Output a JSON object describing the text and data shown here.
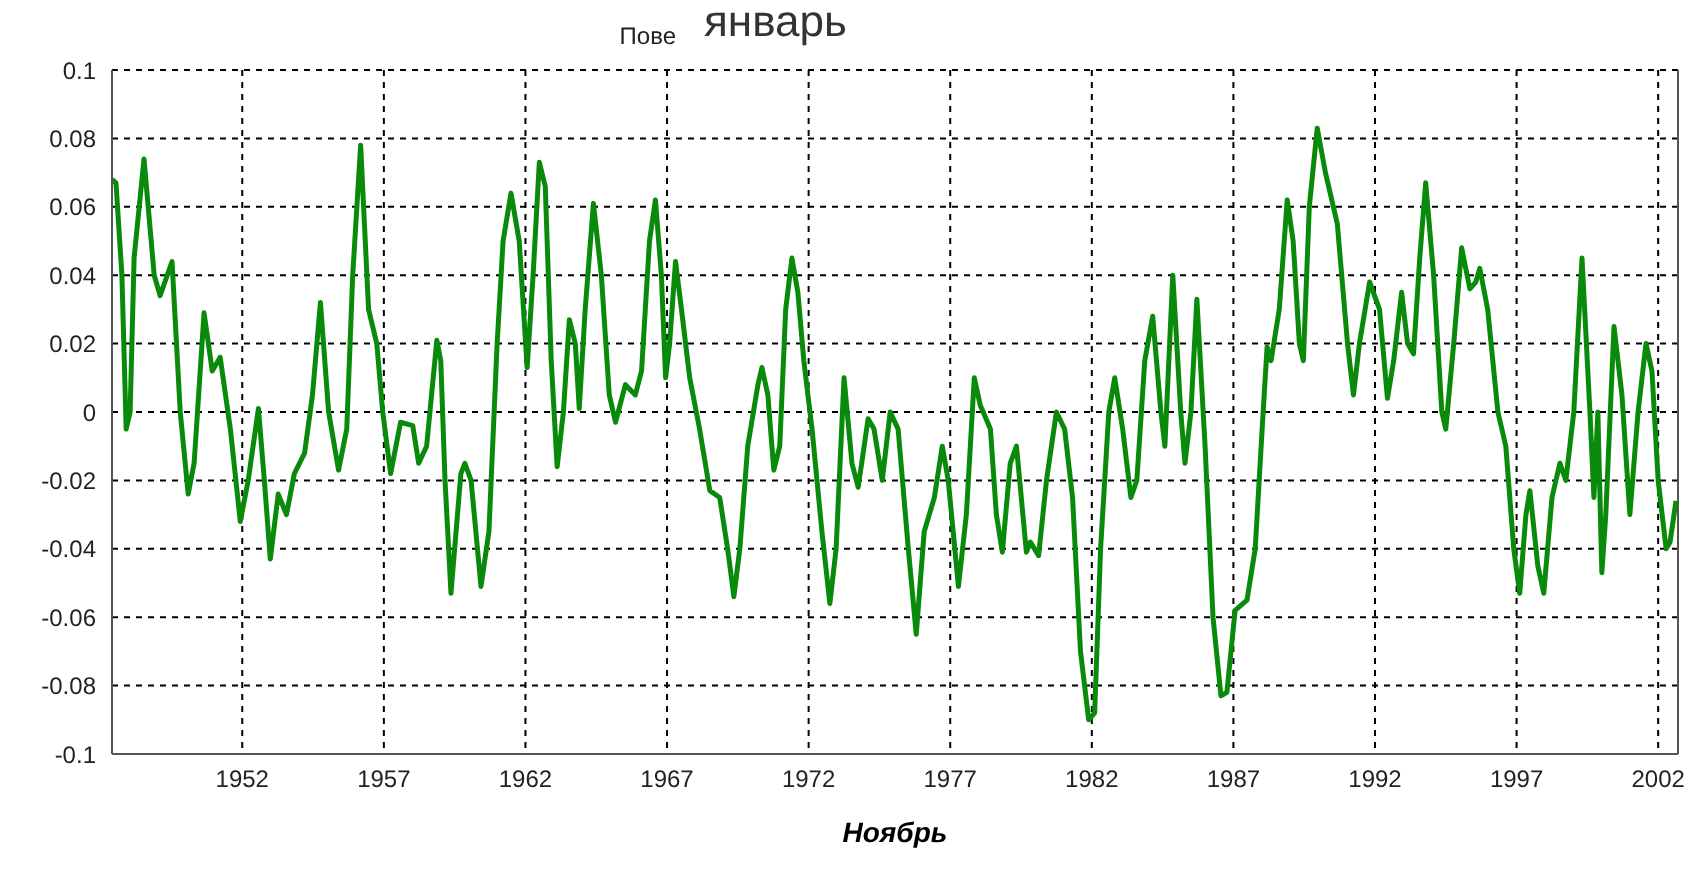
{
  "chart_data": {
    "type": "line",
    "title": "Пове",
    "subtitle": "январь",
    "xlabel": "Ноябрь",
    "xlim": [
      1947.4,
      2002.7
    ],
    "xticks": [
      1952,
      1957,
      1962,
      1967,
      1972,
      1977,
      1982,
      1987,
      1992,
      1997,
      2002
    ],
    "ylim": [
      -0.1,
      0.1
    ],
    "yticks": [
      -0.1,
      -0.08,
      -0.06,
      -0.04,
      -0.02,
      0,
      0.02,
      0.04,
      0.06,
      0.08,
      0.1
    ],
    "grid": true,
    "marker": "none",
    "line_style": "solid",
    "x": [
      1947.4,
      1947.54,
      1947.75,
      1947.9,
      1948.04,
      1948.18,
      1948.53,
      1948.89,
      1949.1,
      1949.52,
      1949.81,
      1950.09,
      1950.3,
      1950.65,
      1950.94,
      1951.22,
      1951.58,
      1951.93,
      1952.21,
      1952.57,
      1952.78,
      1952.99,
      1953.27,
      1953.56,
      1953.84,
      1954.2,
      1954.48,
      1954.76,
      1955.05,
      1955.4,
      1955.69,
      1955.9,
      1956.18,
      1956.46,
      1956.75,
      1956.96,
      1957.24,
      1957.59,
      1958.02,
      1958.23,
      1958.51,
      1958.87,
      1959.01,
      1959.16,
      1959.37,
      1959.72,
      1959.86,
      1960.08,
      1960.43,
      1960.71,
      1961.0,
      1961.21,
      1961.49,
      1961.78,
      1962.06,
      1962.27,
      1962.49,
      1962.7,
      1962.91,
      1963.12,
      1963.34,
      1963.55,
      1963.76,
      1963.9,
      1964.11,
      1964.4,
      1964.68,
      1964.96,
      1965.18,
      1965.53,
      1965.88,
      1966.1,
      1966.38,
      1966.59,
      1966.8,
      1966.95,
      1967.09,
      1967.3,
      1967.51,
      1967.8,
      1968.15,
      1968.51,
      1968.86,
      1969.14,
      1969.36,
      1969.57,
      1969.85,
      1970.21,
      1970.35,
      1970.56,
      1970.77,
      1970.98,
      1971.19,
      1971.41,
      1971.62,
      1971.83,
      1972.12,
      1972.47,
      1972.75,
      1972.97,
      1973.25,
      1973.53,
      1973.75,
      1974.1,
      1974.31,
      1974.6,
      1974.88,
      1975.16,
      1975.52,
      1975.8,
      1976.08,
      1976.44,
      1976.72,
      1976.93,
      1977.29,
      1977.57,
      1977.85,
      1978.06,
      1978.42,
      1978.63,
      1978.84,
      1979.12,
      1979.34,
      1979.69,
      1979.83,
      1980.12,
      1980.4,
      1980.75,
      1981.04,
      1981.32,
      1981.6,
      1981.89,
      1982.1,
      1982.31,
      1982.6,
      1982.81,
      1983.09,
      1983.38,
      1983.59,
      1983.87,
      1984.15,
      1984.44,
      1984.58,
      1984.86,
      1985.14,
      1985.29,
      1985.5,
      1985.71,
      1986.0,
      1986.28,
      1986.56,
      1986.77,
      1987.06,
      1987.48,
      1987.77,
      1988.05,
      1988.19,
      1988.33,
      1988.62,
      1988.9,
      1989.11,
      1989.33,
      1989.47,
      1989.68,
      1989.96,
      1990.25,
      1990.67,
      1991.03,
      1991.24,
      1991.45,
      1991.81,
      1992.16,
      1992.44,
      1992.66,
      1992.94,
      1993.15,
      1993.36,
      1993.58,
      1993.79,
      1994.07,
      1994.36,
      1994.5,
      1994.78,
      1995.06,
      1995.35,
      1995.56,
      1995.7,
      1995.98,
      1996.34,
      1996.62,
      1996.9,
      1997.11,
      1997.33,
      1997.47,
      1997.75,
      1997.96,
      1998.25,
      1998.53,
      1998.74,
      1999.02,
      1999.31,
      1999.59,
      1999.73,
      1999.87,
      2000.01,
      2000.15,
      2000.44,
      2000.72,
      2001.0,
      2001.29,
      2001.57,
      2001.78,
      2002.0,
      2002.28,
      2002.42,
      2002.63
    ],
    "series": [
      {
        "color": "#0a8a0a",
        "values": [
          0.068,
          0.067,
          0.04,
          -0.005,
          0.0,
          0.045,
          0.074,
          0.04,
          0.034,
          0.044,
          0.0,
          -0.024,
          -0.015,
          0.029,
          0.012,
          0.016,
          -0.005,
          -0.032,
          -0.02,
          0.001,
          -0.02,
          -0.043,
          -0.024,
          -0.03,
          -0.018,
          -0.012,
          0.005,
          0.032,
          0.0,
          -0.017,
          -0.005,
          0.04,
          0.078,
          0.03,
          0.02,
          0.0,
          -0.018,
          -0.003,
          -0.004,
          -0.015,
          -0.01,
          0.021,
          0.015,
          -0.02,
          -0.053,
          -0.018,
          -0.015,
          -0.02,
          -0.051,
          -0.035,
          0.02,
          0.05,
          0.064,
          0.05,
          0.013,
          0.04,
          0.073,
          0.066,
          0.015,
          -0.016,
          0.0,
          0.027,
          0.02,
          0.001,
          0.03,
          0.061,
          0.04,
          0.005,
          -0.003,
          0.008,
          0.005,
          0.012,
          0.05,
          0.062,
          0.04,
          0.01,
          0.02,
          0.044,
          0.03,
          0.01,
          -0.005,
          -0.023,
          -0.025,
          -0.04,
          -0.054,
          -0.04,
          -0.01,
          0.008,
          0.013,
          0.005,
          -0.017,
          -0.01,
          0.03,
          0.045,
          0.035,
          0.015,
          -0.005,
          -0.035,
          -0.056,
          -0.04,
          0.01,
          -0.015,
          -0.022,
          -0.002,
          -0.005,
          -0.02,
          0.0,
          -0.005,
          -0.04,
          -0.065,
          -0.035,
          -0.025,
          -0.01,
          -0.02,
          -0.051,
          -0.03,
          0.01,
          0.002,
          -0.005,
          -0.03,
          -0.041,
          -0.015,
          -0.01,
          -0.041,
          -0.038,
          -0.042,
          -0.02,
          0.0,
          -0.005,
          -0.025,
          -0.07,
          -0.09,
          -0.088,
          -0.04,
          0.0,
          0.01,
          -0.005,
          -0.025,
          -0.02,
          0.015,
          0.028,
          0.0,
          -0.01,
          0.04,
          0.0,
          -0.015,
          0.0,
          0.033,
          -0.01,
          -0.06,
          -0.083,
          -0.082,
          -0.058,
          -0.055,
          -0.04,
          0.0,
          0.019,
          0.015,
          0.03,
          0.062,
          0.05,
          0.02,
          0.015,
          0.06,
          0.083,
          0.07,
          0.055,
          0.02,
          0.005,
          0.02,
          0.038,
          0.03,
          0.004,
          0.015,
          0.035,
          0.02,
          0.017,
          0.045,
          0.067,
          0.04,
          0.0,
          -0.005,
          0.02,
          0.048,
          0.036,
          0.038,
          0.042,
          0.03,
          0.0,
          -0.01,
          -0.04,
          -0.053,
          -0.03,
          -0.023,
          -0.045,
          -0.053,
          -0.025,
          -0.015,
          -0.02,
          0.0,
          0.045,
          0.0,
          -0.025,
          0.0,
          -0.047,
          -0.03,
          0.025,
          0.005,
          -0.03,
          0.0,
          0.02,
          0.012,
          -0.02,
          -0.04,
          -0.038,
          -0.026
        ]
      }
    ]
  }
}
